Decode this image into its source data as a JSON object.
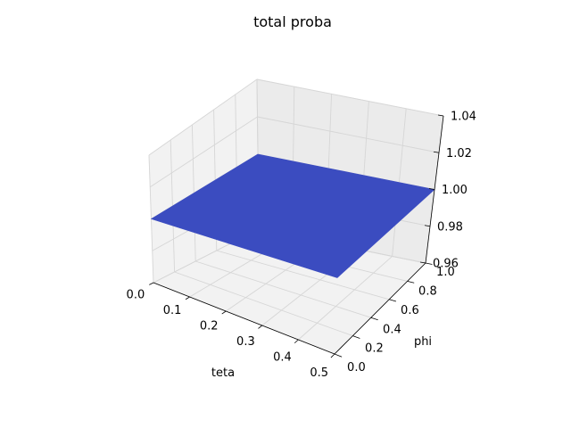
{
  "chart_data": {
    "type": "surface3d",
    "title": "total proba",
    "xlabel": "teta",
    "ylabel": "phi",
    "zlabel": "",
    "xlim": [
      0.0,
      0.5
    ],
    "ylim": [
      0.0,
      1.0
    ],
    "zlim": [
      0.96,
      1.04
    ],
    "x_ticks": [
      "0.0",
      "0.1",
      "0.2",
      "0.3",
      "0.4",
      "0.5"
    ],
    "y_ticks": [
      "0.0",
      "0.2",
      "0.4",
      "0.6",
      "0.8",
      "1.0"
    ],
    "z_ticks": [
      "0.96",
      "0.98",
      "1.00",
      "1.02",
      "1.04"
    ],
    "surface": {
      "x_range": [
        0.0,
        0.5
      ],
      "y_range": [
        0.0,
        1.0
      ],
      "z_value": 1.0,
      "color": "#3b4cc0"
    },
    "grid": true
  }
}
